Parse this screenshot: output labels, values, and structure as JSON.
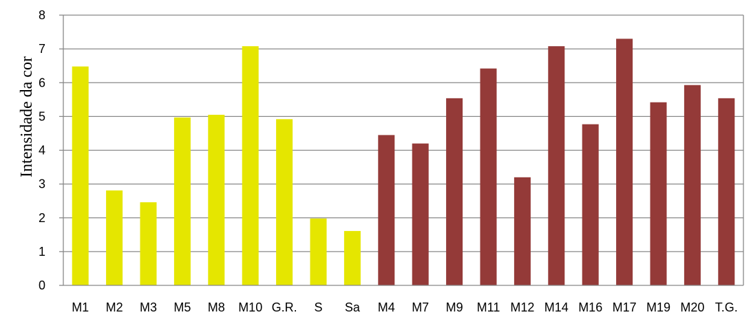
{
  "chart_data": {
    "type": "bar",
    "title": "",
    "xlabel": "",
    "ylabel": "Intensidade da cor",
    "ylim": [
      0,
      8
    ],
    "yticks": [
      0,
      1,
      2,
      3,
      4,
      5,
      6,
      7,
      8
    ],
    "grid": true,
    "legend": "none",
    "categories": [
      "M1",
      "M2",
      "M3",
      "M5",
      "M8",
      "M10",
      "G.R.",
      "S",
      "Sa",
      "M4",
      "M7",
      "M9",
      "M11",
      "M12",
      "M14",
      "M16",
      "M17",
      "M19",
      "M20",
      "T.G."
    ],
    "values": [
      6.48,
      2.81,
      2.46,
      4.97,
      5.05,
      7.08,
      4.92,
      1.98,
      1.61,
      4.45,
      4.2,
      5.54,
      6.42,
      3.2,
      7.08,
      4.77,
      7.3,
      5.42,
      5.93,
      5.54
    ],
    "bar_colors": [
      "#e5e600",
      "#e5e600",
      "#e5e600",
      "#e5e600",
      "#e5e600",
      "#e5e600",
      "#e5e600",
      "#e5e600",
      "#e5e600",
      "#943a38",
      "#943a38",
      "#943a38",
      "#943a38",
      "#943a38",
      "#943a38",
      "#943a38",
      "#943a38",
      "#943a38",
      "#943a38",
      "#943a38"
    ],
    "colors": {
      "gridline": "#888888",
      "axis": "#888888"
    }
  }
}
